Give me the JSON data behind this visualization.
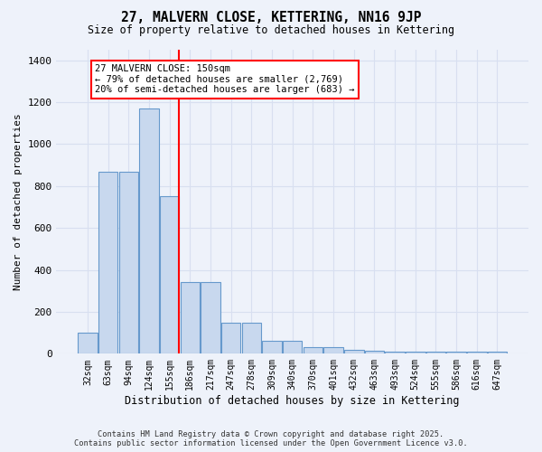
{
  "title": "27, MALVERN CLOSE, KETTERING, NN16 9JP",
  "subtitle": "Size of property relative to detached houses in Kettering",
  "xlabel": "Distribution of detached houses by size in Kettering",
  "ylabel": "Number of detached properties",
  "bar_color": "#c8d8ee",
  "bar_edge_color": "#6699cc",
  "background_color": "#eef2fa",
  "grid_color": "#d8dff0",
  "categories": [
    "32sqm",
    "63sqm",
    "94sqm",
    "124sqm",
    "155sqm",
    "186sqm",
    "217sqm",
    "247sqm",
    "278sqm",
    "309sqm",
    "340sqm",
    "370sqm",
    "401sqm",
    "432sqm",
    "463sqm",
    "493sqm",
    "524sqm",
    "555sqm",
    "586sqm",
    "616sqm",
    "647sqm"
  ],
  "values": [
    100,
    870,
    870,
    1170,
    750,
    340,
    340,
    150,
    150,
    60,
    60,
    30,
    30,
    20,
    15,
    10,
    10,
    8,
    8,
    8,
    8
  ],
  "vline_bar_index": 4,
  "vline_color": "red",
  "annotation_text": "27 MALVERN CLOSE: 150sqm\n← 79% of detached houses are smaller (2,769)\n20% of semi-detached houses are larger (683) →",
  "footer_line1": "Contains HM Land Registry data © Crown copyright and database right 2025.",
  "footer_line2": "Contains public sector information licensed under the Open Government Licence v3.0.",
  "ylim": [
    0,
    1450
  ],
  "yticks": [
    0,
    200,
    400,
    600,
    800,
    1000,
    1200,
    1400
  ],
  "figsize": [
    6.0,
    5.0
  ],
  "dpi": 100
}
